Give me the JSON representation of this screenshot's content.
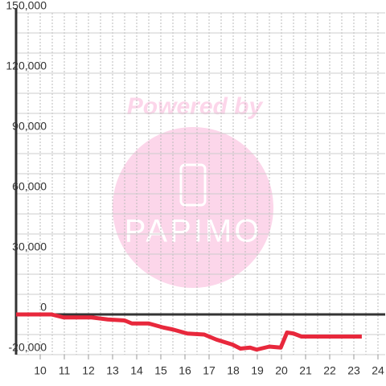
{
  "chart_data": {
    "type": "line",
    "watermark": {
      "text": "Powered by",
      "logo": "PAPIMO"
    },
    "x": [
      9,
      10.47,
      10.97,
      12.13,
      12.8,
      13.5,
      13.8,
      14.5,
      15.1,
      15.5,
      16.1,
      16.8,
      17.3,
      17.97,
      18.3,
      18.7,
      18.97,
      19.5,
      19.97,
      20.23,
      20.5,
      20.83,
      23.33
    ],
    "series": [
      {
        "color": "#e8283c",
        "values": [
          0,
          0,
          -1500,
          -1500,
          -2500,
          -3000,
          -4500,
          -4500,
          -6500,
          -7500,
          -9500,
          -10000,
          -12500,
          -15000,
          -17000,
          -16500,
          -17500,
          -16000,
          -16500,
          -9000,
          -9500,
          -11000,
          -11000
        ]
      }
    ],
    "xlim": [
      9,
      24.3
    ],
    "xticks": [
      10,
      11,
      12,
      13,
      14,
      15,
      16,
      17,
      18,
      19,
      20,
      21,
      22,
      23,
      24
    ],
    "xgrid": [
      9.5,
      10,
      10.5,
      11,
      11.5,
      12,
      12.5,
      13,
      13.5,
      14,
      14.5,
      15,
      15.5,
      16,
      16.5,
      17,
      17.5,
      18,
      18.5,
      19,
      19.5,
      20,
      20.5,
      21,
      21.5,
      22,
      22.5,
      23,
      23.5,
      24
    ],
    "ylim": [
      -20000,
      150000
    ],
    "yticks": [
      {
        "value": -20000,
        "label": "-20,000"
      },
      0,
      {
        "value": 30000,
        "label": "30,000"
      },
      {
        "value": 60000,
        "label": "60,000"
      },
      {
        "value": 90000,
        "label": "90,000"
      },
      {
        "value": 120000,
        "label": "120,000"
      },
      {
        "value": 150000,
        "label": "150,000"
      }
    ],
    "ygrid": [
      -10000,
      10000,
      20000,
      40000,
      50000,
      70000,
      80000,
      100000,
      110000,
      130000,
      140000
    ]
  }
}
